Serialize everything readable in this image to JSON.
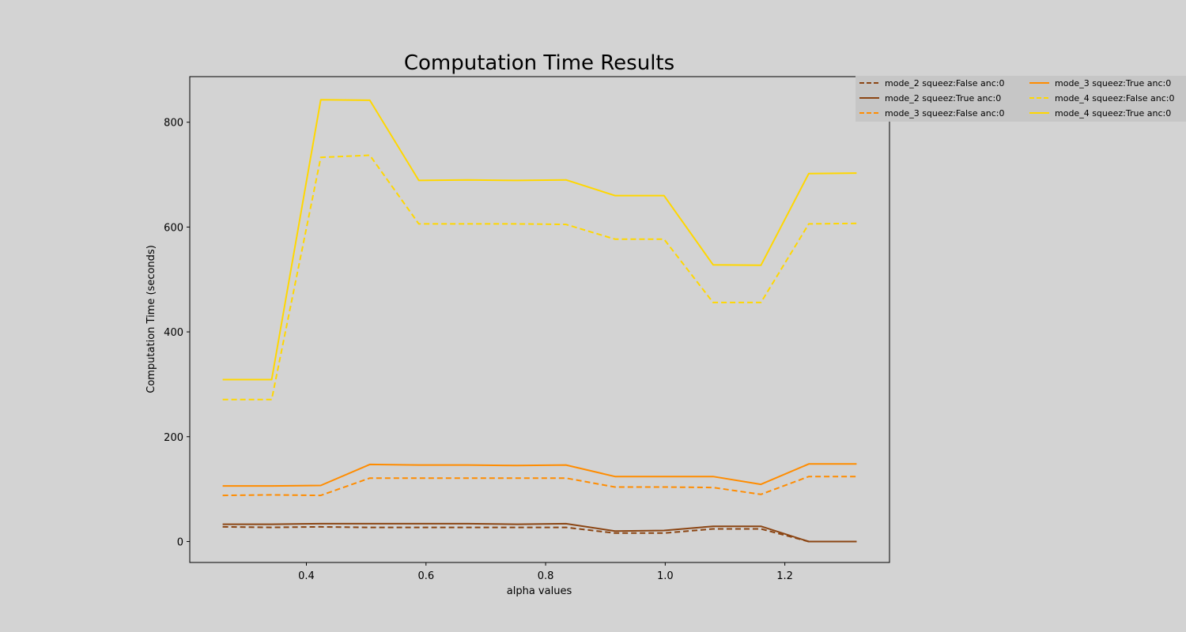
{
  "chart_data": {
    "type": "line",
    "title": "Computation Time Results",
    "xlabel": "alpha values",
    "ylabel": "Computation Time (seconds)",
    "xlim": [
      0.205,
      1.375
    ],
    "ylim": [
      -40,
      887
    ],
    "xticks": [
      0.4,
      0.6,
      0.8,
      1.0,
      1.2
    ],
    "xtick_labels": [
      "0.4",
      "0.6",
      "0.8",
      "1.0",
      "1.2"
    ],
    "yticks": [
      0,
      200,
      400,
      600,
      800
    ],
    "ytick_labels": [
      "0",
      "200",
      "400",
      "600",
      "800"
    ],
    "grid": false,
    "legend_position": "top-right",
    "legend_columns": 2,
    "x": [
      0.26,
      0.342,
      0.424,
      0.506,
      0.588,
      0.67,
      0.752,
      0.834,
      0.916,
      0.998,
      1.08,
      1.16,
      1.24,
      1.32
    ],
    "series": [
      {
        "name": "mode_2 squeez:False anc:0",
        "color": "#8b4513",
        "dash": "dashed",
        "values": [
          28,
          27,
          28,
          27,
          27,
          27,
          27,
          27,
          16,
          16,
          24,
          24,
          0,
          0
        ]
      },
      {
        "name": "mode_2 squeez:True anc:0",
        "color": "#8b4513",
        "dash": "solid",
        "values": [
          33,
          33,
          34,
          34,
          34,
          34,
          33,
          34,
          20,
          21,
          29,
          29,
          0,
          0
        ]
      },
      {
        "name": "mode_3 squeez:False anc:0",
        "color": "#ff8c00",
        "dash": "dashed",
        "values": [
          88,
          89,
          88,
          121,
          121,
          121,
          121,
          121,
          104,
          104,
          103,
          90,
          124,
          124
        ]
      },
      {
        "name": "mode_3 squeez:True anc:0",
        "color": "#ff8c00",
        "dash": "solid",
        "values": [
          106,
          106,
          107,
          147,
          146,
          146,
          145,
          146,
          124,
          124,
          124,
          109,
          148,
          148
        ]
      },
      {
        "name": "mode_4 squeez:False anc:0",
        "color": "#ffd700",
        "dash": "dashed",
        "values": [
          271,
          271,
          733,
          737,
          606,
          606,
          606,
          605,
          577,
          577,
          456,
          456,
          606,
          607
        ]
      },
      {
        "name": "mode_4 squeez:True anc:0",
        "color": "#ffd700",
        "dash": "solid",
        "values": [
          309,
          309,
          843,
          842,
          689,
          690,
          689,
          690,
          660,
          660,
          528,
          527,
          702,
          703
        ]
      }
    ]
  }
}
